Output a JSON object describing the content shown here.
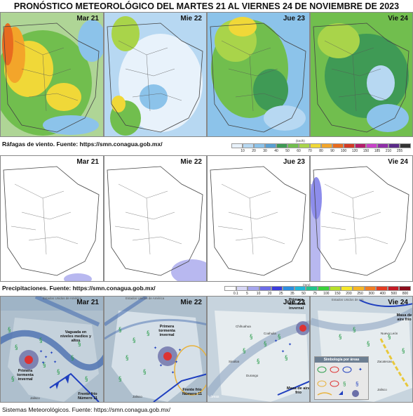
{
  "title": "PRONÓSTICO METEOROLÓGICO DEL MARTES 21 AL VIERNES 24 DE NOVIEMBRE DE 2023",
  "days": [
    "Mar 21",
    "Mie 22",
    "Jue 23",
    "Vie 24"
  ],
  "wind": {
    "caption": "Ráfagas de viento.  Fuente: https://smn.conagua.gob.mx/",
    "unit": "(km/h)",
    "scale_values": [
      "10",
      "20",
      "30",
      "40",
      "50",
      "60",
      "70",
      "80",
      "90",
      "100",
      "120",
      "150",
      "185",
      "210",
      "255"
    ],
    "scale_colors": [
      "#e8f2fb",
      "#b7d8f2",
      "#8cc3ea",
      "#5aa0d2",
      "#3f9a55",
      "#71be4e",
      "#a9d44a",
      "#f0d838",
      "#f3a52a",
      "#e86b1f",
      "#d33b26",
      "#b51d6b",
      "#c842c8",
      "#8f2ea8",
      "#5a2a88",
      "#333333"
    ]
  },
  "precip": {
    "caption": "Precipitaciones.  Fuente: https://smn.conagua.gob.mx/",
    "unit": "(mm)",
    "scale_values": [
      "0.1",
      "5",
      "10",
      "20",
      "25",
      "35",
      "50",
      "75",
      "100",
      "150",
      "200",
      "250",
      "300",
      "400",
      "500",
      "800"
    ],
    "scale_colors": [
      "#ffffff",
      "#d7d7f5",
      "#a6a6ee",
      "#6d6de8",
      "#3c3cdd",
      "#2c8ee0",
      "#21b6d7",
      "#23c48c",
      "#3bd13b",
      "#b6e02b",
      "#f5e82a",
      "#f6b526",
      "#f07e23",
      "#e33d22",
      "#c21b25",
      "#8b0e1c"
    ]
  },
  "systems": {
    "caption": "Sistemas Meteorológicos.   Fuente: https://smn.conagua.gob.mx/",
    "notes": {
      "vaguada": "Vaguada en niveles medios y altos",
      "tormenta_1": "Primera tormenta invernal",
      "frente_1": "Frente frío Número 11",
      "tormenta_2": "Primera tormenta invernal",
      "frente_2": "Frente frío Número 11",
      "tormenta_3": "Primera tormenta invernal",
      "masa_3": "Masa de aire frío",
      "masa_4": "Masa de aire frío",
      "legend_title": "Simbología por áreas",
      "usa_1": "Estados Unidos de América",
      "usa_2": "Estados Unidos de América",
      "usa_4": "Estados Unidos de Am",
      "areas": "áreas",
      "jalisco_1": "Jalisco",
      "jalisco_2": "Jalisco",
      "jalisco_4": "Jalisco",
      "chihuahua": "Chihuahua",
      "coahuila": "Coahuila",
      "zacatecas": "Zacatecas",
      "nuevo_leon": "Nuevo León",
      "sinaloa": "Sinaloa",
      "durango": "Durango"
    }
  }
}
